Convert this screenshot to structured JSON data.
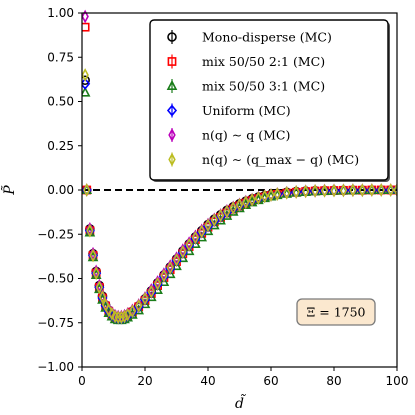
{
  "chart_data": {
    "type": "scatter",
    "xlabel": "d̃",
    "ylabel": "P̃",
    "xlim": [
      0,
      100
    ],
    "ylim": [
      -1.0,
      1.0
    ],
    "x_ticks": [
      "0",
      "20",
      "40",
      "60",
      "80",
      "100"
    ],
    "y_ticks": [
      "−1.00",
      "−0.75",
      "−0.50",
      "−0.25",
      "0.00",
      "0.25",
      "0.50",
      "0.75",
      "1.00"
    ],
    "reference_line": {
      "y": 0.0,
      "style": "dashed",
      "color": "#000000"
    },
    "annotation": "Ξ = 1750",
    "legend_position": "top-right",
    "series": [
      {
        "name": "Mono-disperse (MC)",
        "marker": "circle",
        "color": "#000000",
        "x": [
          1,
          1.5,
          2.5,
          3.5,
          4.5,
          5.5,
          6.5,
          7.5,
          8.5,
          9.5,
          10.5,
          11.5,
          12.5,
          13.5,
          14.5,
          16,
          18,
          20,
          22,
          24,
          26,
          28,
          30,
          32,
          34,
          36,
          38,
          40,
          42,
          44,
          46,
          48,
          50,
          52,
          54,
          56,
          58,
          60,
          62,
          65,
          68,
          71,
          74,
          77,
          80,
          83,
          86,
          89,
          92,
          95,
          98,
          100
        ],
        "y": [
          0.62,
          0.0,
          -0.22,
          -0.36,
          -0.46,
          -0.54,
          -0.6,
          -0.65,
          -0.68,
          -0.7,
          -0.715,
          -0.72,
          -0.72,
          -0.715,
          -0.705,
          -0.685,
          -0.655,
          -0.615,
          -0.57,
          -0.525,
          -0.48,
          -0.435,
          -0.39,
          -0.345,
          -0.305,
          -0.265,
          -0.23,
          -0.195,
          -0.165,
          -0.14,
          -0.115,
          -0.095,
          -0.078,
          -0.063,
          -0.05,
          -0.04,
          -0.032,
          -0.025,
          -0.019,
          -0.013,
          -0.009,
          -0.006,
          -0.004,
          -0.003,
          -0.002,
          -0.002,
          -0.001,
          -0.001,
          0.0,
          0.0,
          0.0,
          0.0
        ]
      },
      {
        "name": "mix 50/50 2:1 (MC)",
        "marker": "square",
        "color": "#ff0000",
        "x": [
          1,
          1.5,
          2.5,
          3.5,
          4.5,
          5.5,
          6.5,
          7.5,
          8.5,
          9.5,
          10.5,
          11.5,
          12.5,
          13.5,
          14.5,
          16,
          18,
          20,
          22,
          24,
          26,
          28,
          30,
          32,
          34,
          36,
          38,
          40,
          42,
          44,
          46,
          48,
          50,
          52,
          54,
          56,
          58,
          60,
          62,
          65,
          68,
          71,
          74,
          77,
          80,
          83,
          86,
          89,
          92,
          95,
          98,
          100
        ],
        "y": [
          0.92,
          0.0,
          -0.23,
          -0.37,
          -0.47,
          -0.55,
          -0.61,
          -0.655,
          -0.685,
          -0.705,
          -0.72,
          -0.725,
          -0.725,
          -0.72,
          -0.71,
          -0.69,
          -0.66,
          -0.625,
          -0.585,
          -0.54,
          -0.495,
          -0.45,
          -0.405,
          -0.36,
          -0.32,
          -0.28,
          -0.245,
          -0.21,
          -0.18,
          -0.155,
          -0.13,
          -0.108,
          -0.09,
          -0.074,
          -0.06,
          -0.049,
          -0.04,
          -0.032,
          -0.025,
          -0.018,
          -0.013,
          -0.009,
          -0.006,
          -0.004,
          -0.003,
          -0.002,
          -0.001,
          -0.001,
          0.0,
          0.0,
          0.0,
          0.0
        ]
      },
      {
        "name": "mix 50/50 3:1 (MC)",
        "marker": "triangle",
        "color": "#1a7d1a",
        "x": [
          1,
          1.5,
          2.5,
          3.5,
          4.5,
          5.5,
          6.5,
          7.5,
          8.5,
          9.5,
          10.5,
          11.5,
          12.5,
          13.5,
          14.5,
          16,
          18,
          20,
          22,
          24,
          26,
          28,
          30,
          32,
          34,
          36,
          38,
          40,
          42,
          44,
          46,
          48,
          50,
          52,
          54,
          56,
          58,
          60,
          62,
          65,
          68,
          71,
          74,
          77,
          80,
          83,
          86,
          89,
          92,
          95,
          98,
          100
        ],
        "y": [
          0.55,
          0.0,
          -0.24,
          -0.38,
          -0.48,
          -0.56,
          -0.62,
          -0.665,
          -0.695,
          -0.715,
          -0.73,
          -0.735,
          -0.735,
          -0.73,
          -0.72,
          -0.705,
          -0.68,
          -0.645,
          -0.605,
          -0.565,
          -0.52,
          -0.475,
          -0.43,
          -0.385,
          -0.345,
          -0.305,
          -0.268,
          -0.232,
          -0.2,
          -0.172,
          -0.146,
          -0.123,
          -0.103,
          -0.085,
          -0.07,
          -0.057,
          -0.046,
          -0.037,
          -0.029,
          -0.021,
          -0.015,
          -0.011,
          -0.008,
          -0.006,
          -0.004,
          -0.003,
          -0.002,
          -0.001,
          -0.001,
          0.0,
          0.0,
          0.0
        ]
      },
      {
        "name": "Uniform (MC)",
        "marker": "diamond",
        "color": "#0000ff",
        "x": [
          1,
          1.5,
          2.5,
          3.5,
          4.5,
          5.5,
          6.5,
          7.5,
          8.5,
          9.5,
          10.5,
          11.5,
          12.5,
          13.5,
          14.5,
          16,
          18,
          20,
          22,
          24,
          26,
          28,
          30,
          32,
          34,
          36,
          38,
          40,
          42,
          44,
          46,
          48,
          50,
          52,
          54,
          56,
          58,
          60,
          62,
          65,
          68,
          71,
          74,
          77,
          80,
          83,
          86,
          89,
          92,
          95,
          98,
          100
        ],
        "y": [
          0.6,
          0.0,
          -0.23,
          -0.37,
          -0.47,
          -0.55,
          -0.61,
          -0.655,
          -0.685,
          -0.705,
          -0.72,
          -0.725,
          -0.725,
          -0.72,
          -0.71,
          -0.69,
          -0.66,
          -0.62,
          -0.58,
          -0.535,
          -0.49,
          -0.445,
          -0.4,
          -0.355,
          -0.315,
          -0.275,
          -0.24,
          -0.205,
          -0.175,
          -0.15,
          -0.126,
          -0.105,
          -0.087,
          -0.071,
          -0.058,
          -0.047,
          -0.038,
          -0.03,
          -0.024,
          -0.017,
          -0.012,
          -0.008,
          -0.006,
          -0.004,
          -0.003,
          -0.002,
          -0.001,
          -0.001,
          0.0,
          0.0,
          0.0,
          0.0
        ]
      },
      {
        "name": "n(q) ∼ q (MC)",
        "marker": "thin-diamond",
        "color": "#bb00bb",
        "x": [
          1,
          1.5,
          2.5,
          3.5,
          4.5,
          5.5,
          6.5,
          7.5,
          8.5,
          9.5,
          10.5,
          11.5,
          12.5,
          13.5,
          14.5,
          16,
          18,
          20,
          22,
          24,
          26,
          28,
          30,
          32,
          34,
          36,
          38,
          40,
          42,
          44,
          46,
          48,
          50,
          52,
          54,
          56,
          58,
          60,
          62,
          65,
          68,
          71,
          74,
          77,
          80,
          83,
          86,
          89,
          92,
          95,
          98,
          100
        ],
        "y": [
          0.98,
          0.0,
          -0.22,
          -0.36,
          -0.46,
          -0.54,
          -0.6,
          -0.645,
          -0.675,
          -0.695,
          -0.71,
          -0.715,
          -0.715,
          -0.71,
          -0.7,
          -0.68,
          -0.65,
          -0.61,
          -0.565,
          -0.52,
          -0.475,
          -0.43,
          -0.385,
          -0.34,
          -0.3,
          -0.262,
          -0.228,
          -0.195,
          -0.166,
          -0.141,
          -0.118,
          -0.098,
          -0.081,
          -0.066,
          -0.054,
          -0.043,
          -0.035,
          -0.028,
          -0.022,
          -0.015,
          -0.011,
          -0.007,
          -0.005,
          -0.003,
          -0.002,
          -0.002,
          -0.001,
          -0.001,
          0.0,
          0.0,
          0.0,
          0.0
        ]
      },
      {
        "name": "n(q) ∼ (q_max − q) (MC)",
        "marker": "thin-diamond",
        "color": "#bcbd22",
        "x": [
          1,
          1.5,
          2.5,
          3.5,
          4.5,
          5.5,
          6.5,
          7.5,
          8.5,
          9.5,
          10.5,
          11.5,
          12.5,
          13.5,
          14.5,
          16,
          18,
          20,
          22,
          24,
          26,
          28,
          30,
          32,
          34,
          36,
          38,
          40,
          42,
          44,
          46,
          48,
          50,
          52,
          54,
          56,
          58,
          60,
          62,
          65,
          68,
          71,
          74,
          77,
          80,
          83,
          86,
          89,
          92,
          95,
          98,
          100
        ],
        "y": [
          0.65,
          0.0,
          -0.23,
          -0.37,
          -0.47,
          -0.55,
          -0.605,
          -0.65,
          -0.68,
          -0.7,
          -0.715,
          -0.72,
          -0.72,
          -0.715,
          -0.705,
          -0.685,
          -0.655,
          -0.615,
          -0.575,
          -0.53,
          -0.485,
          -0.44,
          -0.395,
          -0.35,
          -0.31,
          -0.27,
          -0.235,
          -0.2,
          -0.17,
          -0.145,
          -0.122,
          -0.102,
          -0.084,
          -0.069,
          -0.056,
          -0.045,
          -0.036,
          -0.029,
          -0.023,
          -0.016,
          -0.011,
          -0.008,
          -0.005,
          -0.004,
          -0.003,
          -0.002,
          -0.001,
          -0.001,
          0.0,
          0.0,
          0.0,
          0.0
        ]
      }
    ]
  }
}
